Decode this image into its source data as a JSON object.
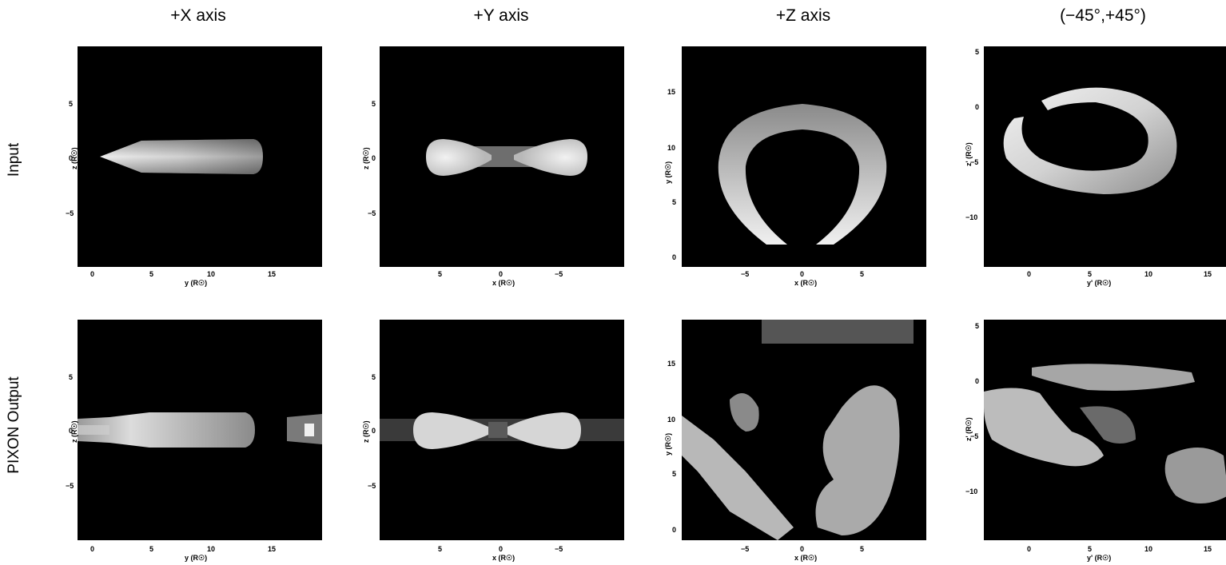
{
  "columns": [
    {
      "title": "+X axis"
    },
    {
      "title": "+Y axis"
    },
    {
      "title": "+Z axis"
    },
    {
      "title": "(−45°,+45°)"
    }
  ],
  "rows": [
    {
      "label": "Input"
    },
    {
      "label": "PIXON Output"
    }
  ],
  "panels": [
    {
      "xlabel": "y (R☉)",
      "ylabel": "z (R☉)",
      "xticks": [
        "0",
        "5",
        "10",
        "15"
      ],
      "yticks": [
        "5",
        "0",
        "−5"
      ]
    },
    {
      "xlabel": "x (R☉)",
      "ylabel": "z (R☉)",
      "xticks": [
        "5",
        "0",
        "−5"
      ],
      "yticks": [
        "5",
        "0",
        "−5"
      ]
    },
    {
      "xlabel": "x (R☉)",
      "ylabel": "y (R☉)",
      "xticks": [
        "−5",
        "0",
        "5"
      ],
      "yticks": [
        "15",
        "10",
        "5",
        "0"
      ]
    },
    {
      "xlabel": "y' (R☉)",
      "ylabel": "z' (R☉)",
      "xticks": [
        "0",
        "5",
        "10",
        "15"
      ],
      "yticks": [
        "5",
        "0",
        "−5",
        "−10"
      ]
    }
  ]
}
